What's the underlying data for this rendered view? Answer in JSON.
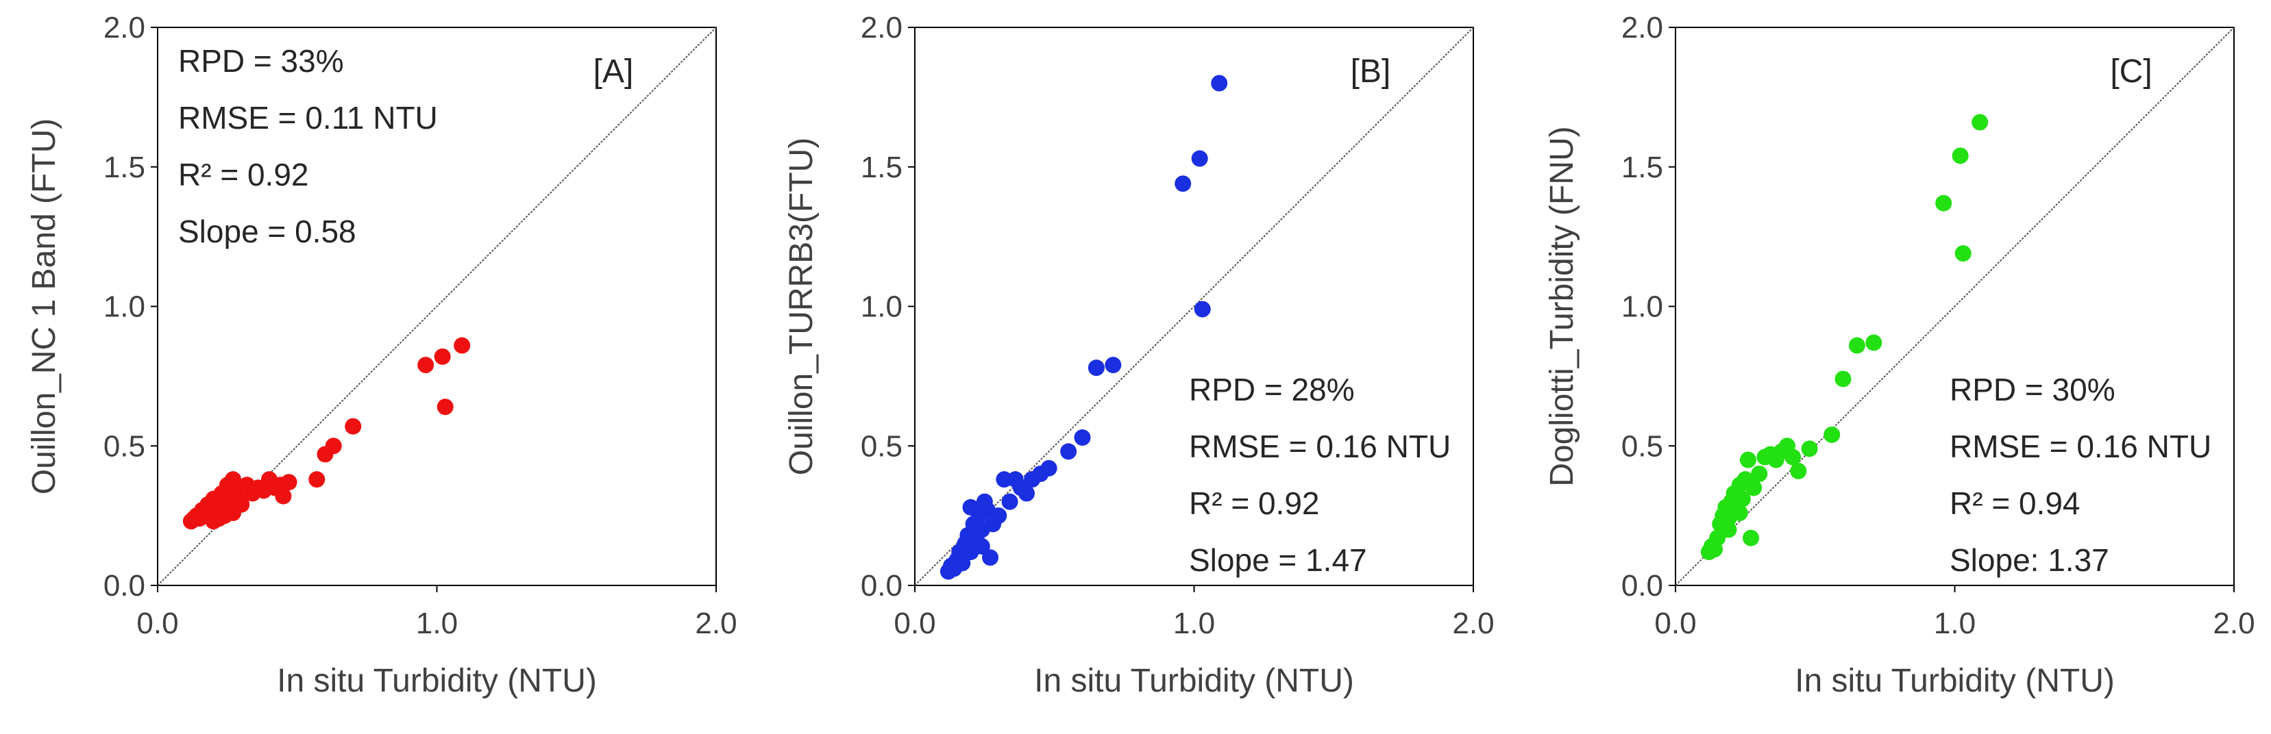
{
  "chart_data": [
    {
      "type": "scatter",
      "panel_label": "[A]",
      "xlabel": "In situ Turbidity (NTU)",
      "ylabel": "Ouillon_NC 1 Band (FTU)",
      "xlim": [
        0,
        2
      ],
      "ylim": [
        0,
        2
      ],
      "xticks": [
        "0.0",
        "1.0",
        "2.0"
      ],
      "yticks": [
        "0.0",
        "0.5",
        "1.0",
        "1.5",
        "2.0"
      ],
      "one_to_one_line": true,
      "color": "#ee1111",
      "stats_position": "top-left",
      "stats": [
        "RPD = 33%",
        "RMSE = 0.11 NTU",
        "R² = 0.92",
        "Slope = 0.58"
      ],
      "points": [
        [
          0.12,
          0.23
        ],
        [
          0.13,
          0.24
        ],
        [
          0.14,
          0.25
        ],
        [
          0.15,
          0.24
        ],
        [
          0.16,
          0.27
        ],
        [
          0.17,
          0.25
        ],
        [
          0.18,
          0.29
        ],
        [
          0.19,
          0.26
        ],
        [
          0.2,
          0.31
        ],
        [
          0.21,
          0.27
        ],
        [
          0.22,
          0.24
        ],
        [
          0.23,
          0.33
        ],
        [
          0.24,
          0.28
        ],
        [
          0.25,
          0.36
        ],
        [
          0.26,
          0.3
        ],
        [
          0.27,
          0.26
        ],
        [
          0.28,
          0.34
        ],
        [
          0.29,
          0.31
        ],
        [
          0.3,
          0.29
        ],
        [
          0.32,
          0.36
        ],
        [
          0.34,
          0.33
        ],
        [
          0.36,
          0.35
        ],
        [
          0.38,
          0.34
        ],
        [
          0.4,
          0.38
        ],
        [
          0.42,
          0.35
        ],
        [
          0.44,
          0.36
        ],
        [
          0.45,
          0.32
        ],
        [
          0.47,
          0.37
        ],
        [
          0.57,
          0.38
        ],
        [
          0.6,
          0.47
        ],
        [
          0.63,
          0.5
        ],
        [
          0.7,
          0.57
        ],
        [
          0.96,
          0.79
        ],
        [
          1.02,
          0.82
        ],
        [
          1.03,
          0.64
        ],
        [
          1.09,
          0.86
        ],
        [
          0.2,
          0.23
        ],
        [
          0.24,
          0.25
        ],
        [
          0.27,
          0.38
        ],
        [
          0.22,
          0.3
        ]
      ]
    },
    {
      "type": "scatter",
      "panel_label": "[B]",
      "xlabel": "In situ Turbidity (NTU)",
      "ylabel": "Ouillon_TURRB3(FTU)",
      "xlim": [
        0,
        2
      ],
      "ylim": [
        0,
        2
      ],
      "xticks": [
        "0.0",
        "1.0",
        "2.0"
      ],
      "yticks": [
        "0.0",
        "0.5",
        "1.0",
        "1.5",
        "2.0"
      ],
      "one_to_one_line": true,
      "color": "#1a2fe0",
      "stats_position": "middle-right",
      "stats": [
        "RPD = 28%",
        "RMSE = 0.16 NTU",
        "R² = 0.92",
        "Slope = 1.47"
      ],
      "points": [
        [
          0.12,
          0.05
        ],
        [
          0.13,
          0.07
        ],
        [
          0.14,
          0.06
        ],
        [
          0.15,
          0.09
        ],
        [
          0.16,
          0.12
        ],
        [
          0.17,
          0.08
        ],
        [
          0.18,
          0.15
        ],
        [
          0.19,
          0.18
        ],
        [
          0.2,
          0.12
        ],
        [
          0.21,
          0.22
        ],
        [
          0.22,
          0.17
        ],
        [
          0.23,
          0.25
        ],
        [
          0.24,
          0.2
        ],
        [
          0.25,
          0.3
        ],
        [
          0.26,
          0.27
        ],
        [
          0.27,
          0.1
        ],
        [
          0.28,
          0.22
        ],
        [
          0.3,
          0.25
        ],
        [
          0.32,
          0.38
        ],
        [
          0.34,
          0.3
        ],
        [
          0.36,
          0.38
        ],
        [
          0.38,
          0.35
        ],
        [
          0.4,
          0.33
        ],
        [
          0.42,
          0.38
        ],
        [
          0.45,
          0.4
        ],
        [
          0.48,
          0.42
        ],
        [
          0.55,
          0.48
        ],
        [
          0.6,
          0.53
        ],
        [
          0.65,
          0.78
        ],
        [
          0.71,
          0.79
        ],
        [
          0.96,
          1.44
        ],
        [
          1.02,
          1.53
        ],
        [
          1.03,
          0.99
        ],
        [
          1.09,
          1.8
        ],
        [
          0.2,
          0.28
        ],
        [
          0.24,
          0.14
        ]
      ]
    },
    {
      "type": "scatter",
      "panel_label": "[C]",
      "xlabel": "In situ Turbidity (NTU)",
      "ylabel": "Dogliotti_Turbidity (FNU)",
      "xlim": [
        0,
        2
      ],
      "ylim": [
        0,
        2
      ],
      "xticks": [
        "0.0",
        "1.0",
        "2.0"
      ],
      "yticks": [
        "0.0",
        "0.5",
        "1.0",
        "1.5",
        "2.0"
      ],
      "one_to_one_line": true,
      "color": "#22e011",
      "stats_position": "middle-right",
      "stats": [
        "RPD = 30%",
        "RMSE = 0.16 NTU",
        "R² = 0.94",
        "Slope: 1.37"
      ],
      "points": [
        [
          0.12,
          0.12
        ],
        [
          0.13,
          0.14
        ],
        [
          0.14,
          0.13
        ],
        [
          0.15,
          0.17
        ],
        [
          0.16,
          0.22
        ],
        [
          0.17,
          0.25
        ],
        [
          0.18,
          0.28
        ],
        [
          0.19,
          0.24
        ],
        [
          0.2,
          0.3
        ],
        [
          0.21,
          0.33
        ],
        [
          0.22,
          0.27
        ],
        [
          0.23,
          0.36
        ],
        [
          0.24,
          0.31
        ],
        [
          0.25,
          0.38
        ],
        [
          0.26,
          0.45
        ],
        [
          0.27,
          0.17
        ],
        [
          0.28,
          0.35
        ],
        [
          0.3,
          0.4
        ],
        [
          0.32,
          0.46
        ],
        [
          0.34,
          0.47
        ],
        [
          0.36,
          0.45
        ],
        [
          0.38,
          0.48
        ],
        [
          0.4,
          0.5
        ],
        [
          0.42,
          0.46
        ],
        [
          0.44,
          0.41
        ],
        [
          0.48,
          0.49
        ],
        [
          0.56,
          0.54
        ],
        [
          0.6,
          0.74
        ],
        [
          0.65,
          0.86
        ],
        [
          0.71,
          0.87
        ],
        [
          0.96,
          1.37
        ],
        [
          1.02,
          1.54
        ],
        [
          1.03,
          1.19
        ],
        [
          1.09,
          1.66
        ],
        [
          0.19,
          0.2
        ],
        [
          0.23,
          0.26
        ]
      ]
    }
  ]
}
